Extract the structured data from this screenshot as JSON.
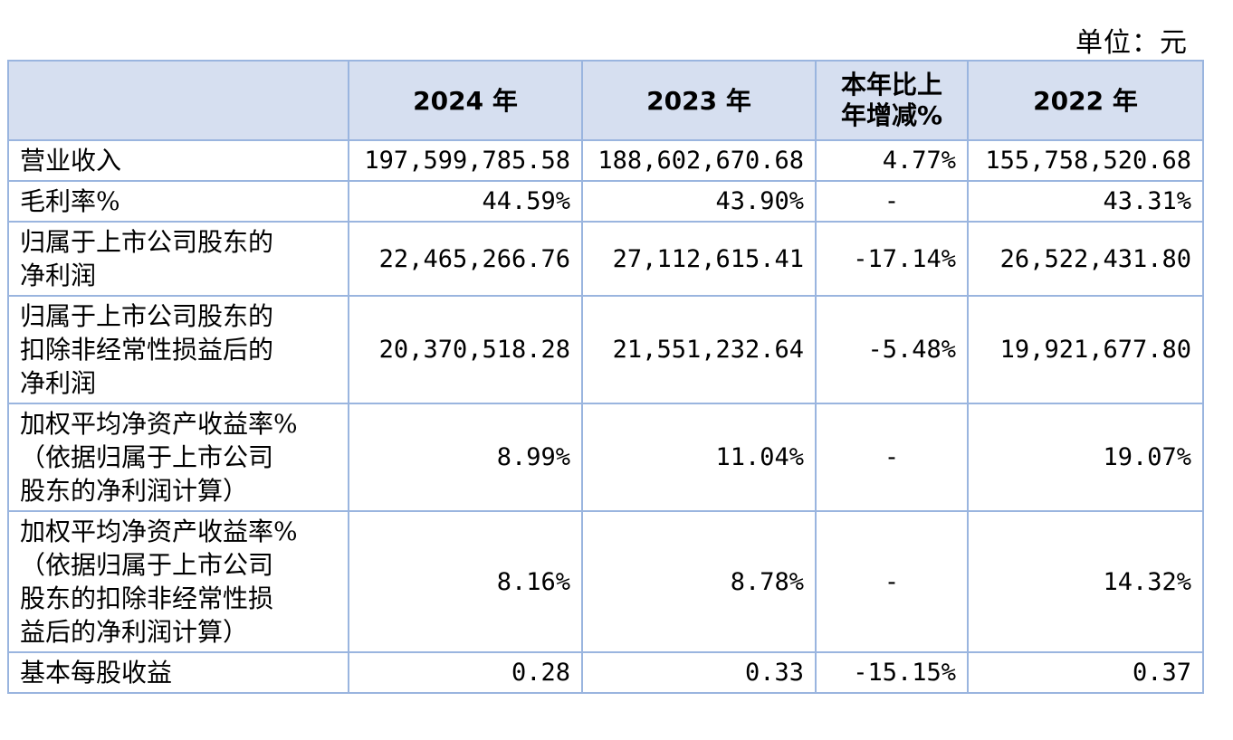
{
  "unit_label": "单位：元",
  "table": {
    "headers": [
      "",
      "2024 年",
      "2023 年",
      "本年比上\n年增减%",
      "2022 年"
    ],
    "rows": [
      {
        "label": "营业收入",
        "values": [
          "197,599,785.58",
          "188,602,670.68",
          "4.77%",
          "155,758,520.68"
        ]
      },
      {
        "label": "毛利率%",
        "values": [
          "44.59%",
          "43.90%",
          "-",
          "43.31%"
        ]
      },
      {
        "label": "归属于上市公司股东的\n净利润",
        "values": [
          "22,465,266.76",
          "27,112,615.41",
          "-17.14%",
          "26,522,431.80"
        ]
      },
      {
        "label": "归属于上市公司股东的\n扣除非经常性损益后的\n净利润",
        "values": [
          "20,370,518.28",
          "21,551,232.64",
          "-5.48%",
          "19,921,677.80"
        ]
      },
      {
        "label": "加权平均净资产收益率%\n（依据归属于上市公司\n股东的净利润计算）",
        "values": [
          "8.99%",
          "11.04%",
          "-",
          "19.07%"
        ]
      },
      {
        "label": "加权平均净资产收益率%\n（依据归属于上市公司\n股东的扣除非经常性损\n益后的净利润计算）",
        "values": [
          "8.16%",
          "8.78%",
          "-",
          "14.32%"
        ]
      },
      {
        "label": "基本每股收益",
        "values": [
          "0.28",
          "0.33",
          "-15.15%",
          "0.37"
        ]
      }
    ]
  }
}
